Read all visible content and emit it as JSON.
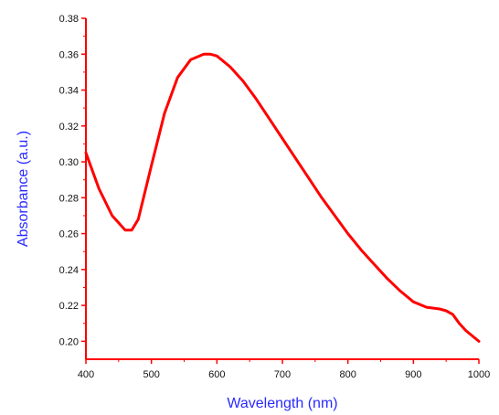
{
  "chart_data": {
    "type": "line",
    "title": "",
    "xlabel": "Wavelength (nm)",
    "ylabel": "Absorbance (a.u.)",
    "xlim": [
      400,
      1000
    ],
    "ylim": [
      0.19,
      0.38
    ],
    "x_ticks": [
      400,
      500,
      600,
      700,
      800,
      900,
      1000
    ],
    "y_ticks": [
      0.2,
      0.22,
      0.24,
      0.26,
      0.28,
      0.3,
      0.32,
      0.34,
      0.36,
      0.38
    ],
    "x_tick_labels": [
      "400",
      "500",
      "600",
      "700",
      "800",
      "900",
      "1000"
    ],
    "y_tick_labels": [
      "0.20",
      "0.22",
      "0.24",
      "0.26",
      "0.28",
      "0.30",
      "0.32",
      "0.34",
      "0.36",
      "0.38"
    ],
    "grid": false,
    "colors": {
      "axes": "#ff0000",
      "line": "#ff0000",
      "labels": "#2a2aff"
    },
    "series": [
      {
        "x": [
          400,
          420,
          440,
          460,
          470,
          480,
          500,
          520,
          540,
          560,
          580,
          590,
          600,
          620,
          640,
          660,
          680,
          700,
          720,
          740,
          760,
          780,
          800,
          820,
          840,
          860,
          880,
          900,
          920,
          940,
          950,
          960,
          970,
          980,
          1000
        ],
        "values": [
          0.305,
          0.285,
          0.27,
          0.262,
          0.262,
          0.268,
          0.298,
          0.327,
          0.347,
          0.357,
          0.36,
          0.36,
          0.359,
          0.353,
          0.345,
          0.335,
          0.324,
          0.313,
          0.302,
          0.291,
          0.28,
          0.27,
          0.26,
          0.251,
          0.243,
          0.235,
          0.228,
          0.222,
          0.219,
          0.218,
          0.217,
          0.215,
          0.21,
          0.206,
          0.2
        ]
      }
    ]
  }
}
